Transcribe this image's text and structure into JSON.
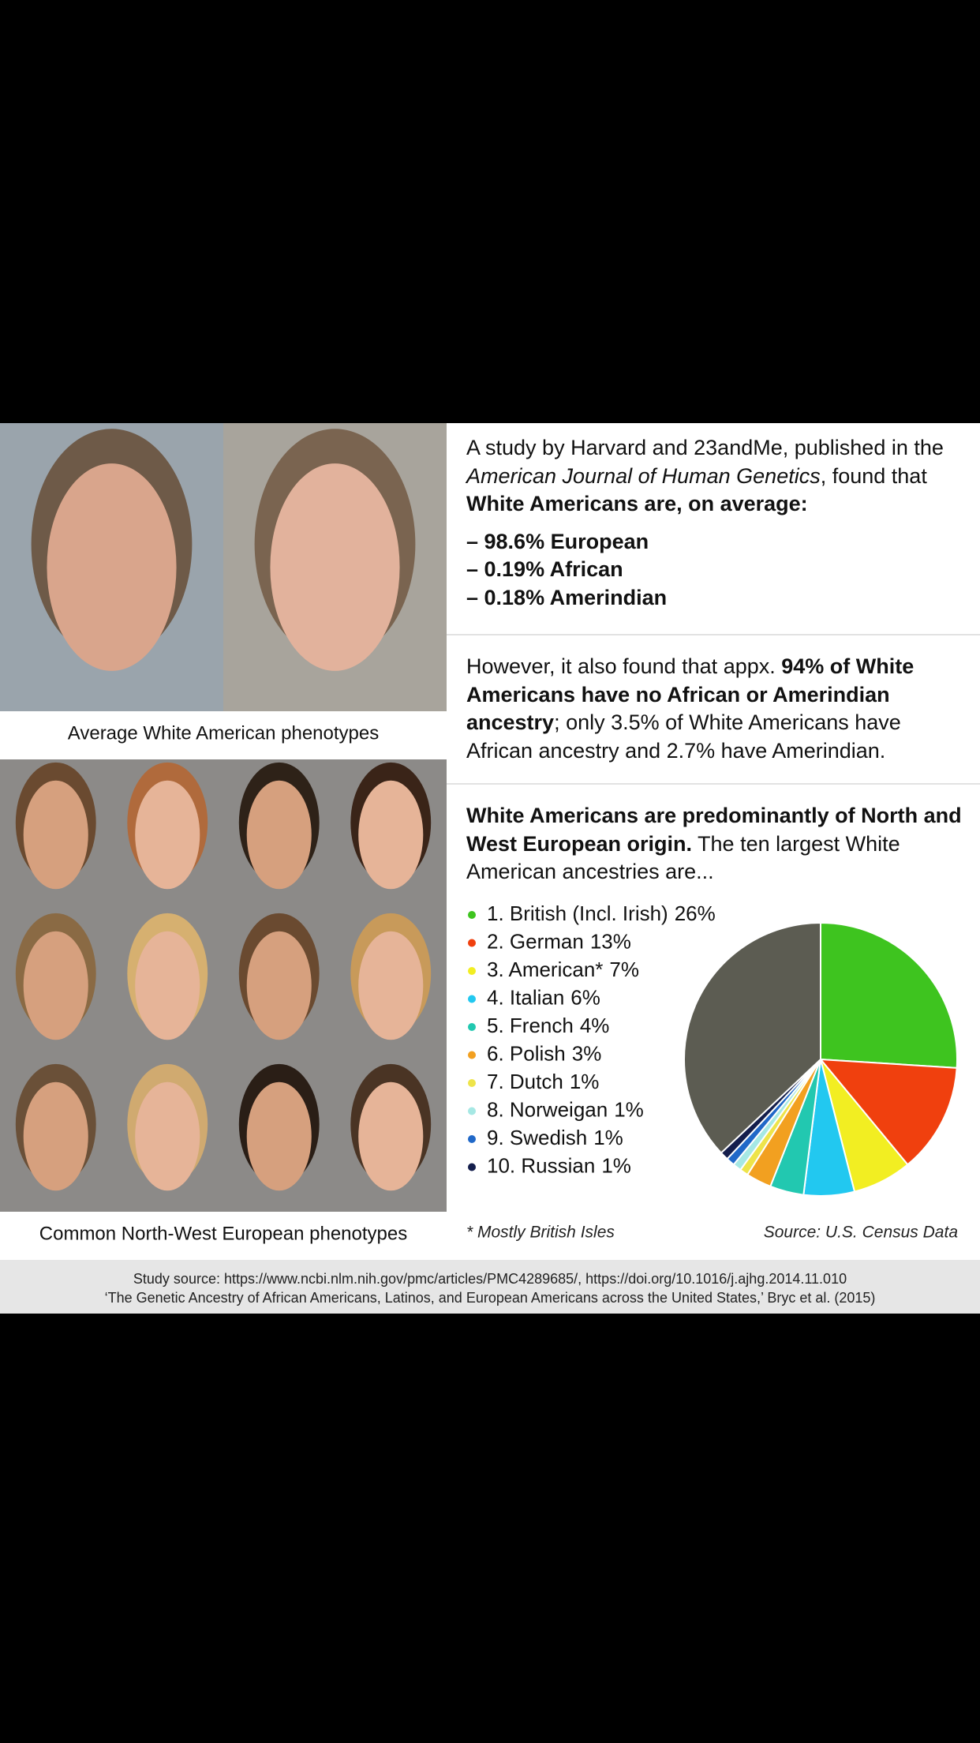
{
  "left": {
    "top_caption": "Average White American phenotypes",
    "bottom_caption": "Common North-West European phenotypes"
  },
  "study": {
    "intro": "A study by Harvard and 23andMe, published in the ",
    "journal": "American Journal of Human Genetics",
    "found": ", found that ",
    "headline": "White Americans are, on average:",
    "items": [
      "– 98.6% European",
      "– 0.19% African",
      "– 0.18% Amerindian"
    ]
  },
  "however": {
    "lead": "However, it also found that appx. ",
    "bold": "94% of White Americans have no African or Amerindian ancestry",
    "rest": "; only 3.5% of White Americans have African ancestry and 2.7% have Amerindian."
  },
  "origin": {
    "bold": "White Americans are predominantly of North and West European origin.",
    "rest": " The ten largest White American ancestries are..."
  },
  "chart_data": {
    "type": "pie",
    "categories": [
      "1. British (Incl. Irish)",
      "2. German",
      "3. American*",
      "4. Italian",
      "5. French",
      "6. Polish",
      "7. Dutch",
      "8. Norweigan",
      "9. Swedish",
      "10. Russian",
      null
    ],
    "values": [
      26,
      13,
      7,
      6,
      4,
      3,
      1,
      1,
      1,
      1,
      37
    ],
    "value_labels": [
      "26%",
      "13%",
      "7%",
      "6%",
      "4%",
      "3%",
      "1%",
      "1%",
      "1%",
      "1%",
      null
    ],
    "colors": [
      "#3ec41f",
      "#f0400e",
      "#f2ee22",
      "#22c8f0",
      "#22c8b0",
      "#f2a020",
      "#eee44a",
      "#a6e8e4",
      "#2068c8",
      "#141e4c",
      "#5c5c52"
    ],
    "note": "* Mostly British Isles",
    "source": "Source: U.S. Census Data"
  },
  "footer": {
    "line1": "Study source: https://www.ncbi.nlm.nih.gov/pmc/articles/PMC4289685/, https://doi.org/10.1016/j.ajhg.2014.11.010",
    "line2": "‘The Genetic Ancestry of African Americans, Latinos, and European Americans across the United States,’ Bryc et al. (2015)"
  }
}
